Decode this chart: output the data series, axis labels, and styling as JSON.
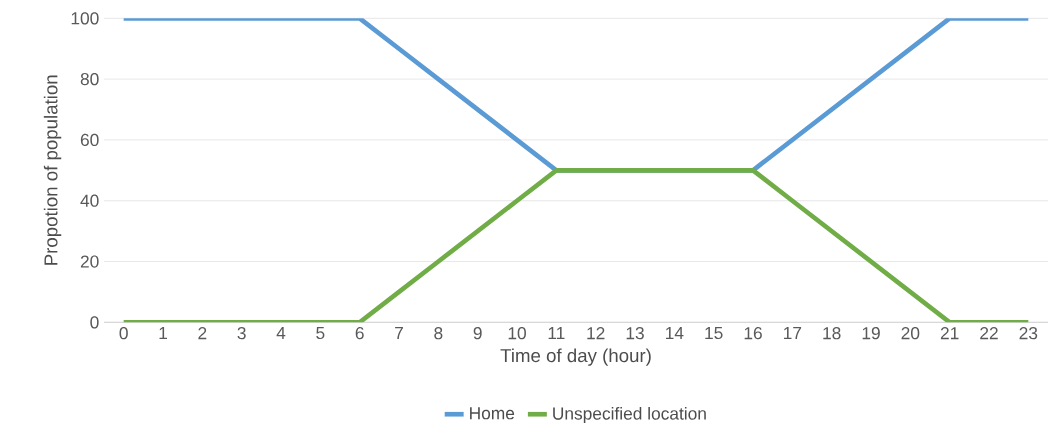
{
  "chart_data": {
    "type": "line",
    "xlabel": "Time of day (hour)",
    "ylabel": "Propotion of population",
    "categories": [
      "0",
      "1",
      "2",
      "3",
      "4",
      "5",
      "6",
      "7",
      "8",
      "9",
      "10",
      "11",
      "12",
      "13",
      "14",
      "15",
      "16",
      "17",
      "18",
      "19",
      "20",
      "21",
      "22",
      "23"
    ],
    "series": [
      {
        "name": "Home",
        "color": "#5b9bd5",
        "values": [
          100,
          100,
          100,
          100,
          100,
          100,
          100,
          90,
          80,
          70,
          60,
          50,
          null,
          null,
          null,
          null,
          50,
          60,
          70,
          80,
          90,
          100,
          100,
          100
        ]
      },
      {
        "name": "Unspecified location",
        "color": "#70ad47",
        "values": [
          0,
          0,
          0,
          0,
          0,
          0,
          0,
          10,
          20,
          30,
          40,
          50,
          50,
          50,
          50,
          50,
          50,
          40,
          30,
          20,
          10,
          0,
          0,
          0
        ]
      }
    ],
    "ylim": [
      0,
      100
    ],
    "yticks": [
      0,
      20,
      40,
      60,
      80,
      100
    ],
    "grid": "y",
    "legend": "bottom",
    "marker": "none",
    "line_style": "solid"
  }
}
